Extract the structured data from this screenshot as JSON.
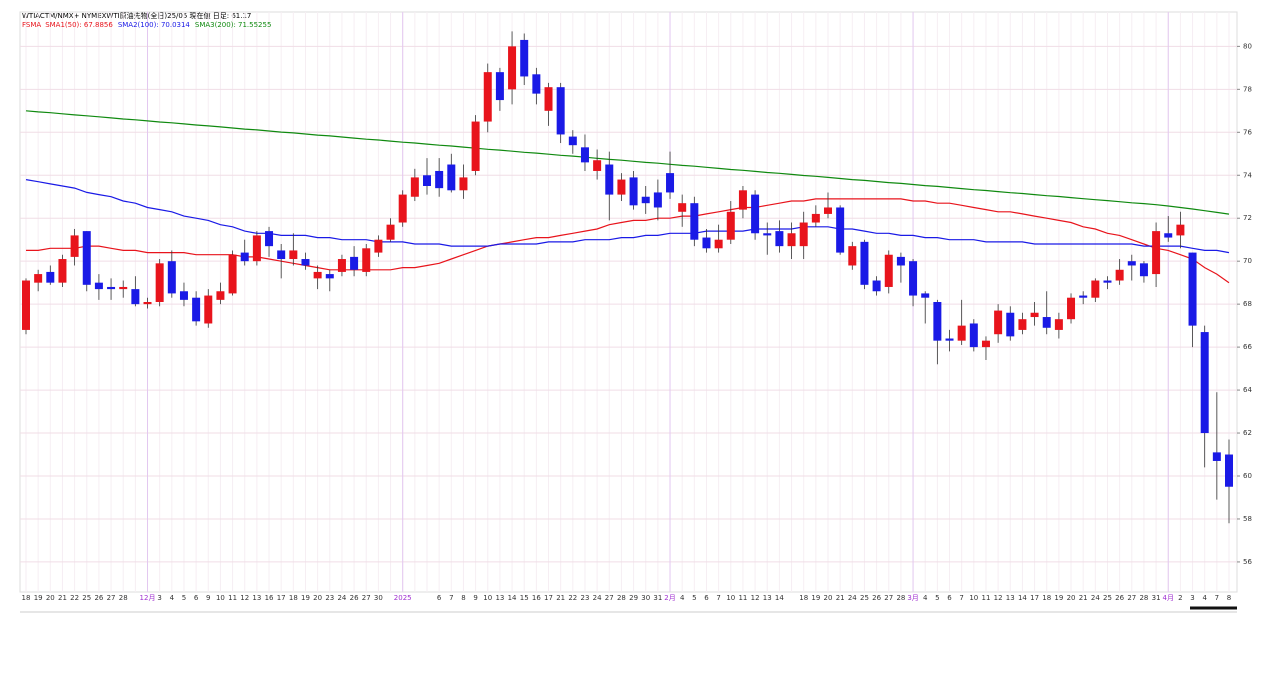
{
  "chart_data": {
    "type": "candlestick",
    "title": "WTIACTM/NMX+ NYMEXWTI原油先物(全日)25/05 現在値 日足: 61.17",
    "legend_prefix": "FSMA",
    "up_color": "#e8141c",
    "down_color": "#1a1ae6",
    "grid": true,
    "categories": [
      "18",
      "19",
      "20",
      "21",
      "22",
      "25",
      "26",
      "27",
      "28",
      null,
      "12月",
      "3",
      "4",
      "5",
      "6",
      "9",
      "10",
      "11",
      "12",
      "13",
      "16",
      "17",
      "18",
      "19",
      "20",
      "23",
      "24",
      "26",
      "27",
      "30",
      null,
      "2025",
      null,
      null,
      "6",
      "7",
      "8",
      "9",
      "10",
      "13",
      "14",
      "15",
      "16",
      "17",
      "21",
      "22",
      "23",
      "24",
      "27",
      "28",
      "29",
      "30",
      "31",
      "2月",
      "4",
      "5",
      "6",
      "7",
      "10",
      "11",
      "12",
      "13",
      "14",
      null,
      "18",
      "19",
      "20",
      "21",
      "24",
      "25",
      "26",
      "27",
      "28",
      "3月",
      "4",
      "5",
      "6",
      "7",
      "10",
      "11",
      "12",
      "13",
      "14",
      "17",
      "18",
      "19",
      "20",
      "21",
      "24",
      "25",
      "26",
      "27",
      "28",
      "31",
      "4月",
      "2",
      "3",
      "4",
      "7",
      "8"
    ],
    "open": [
      66.8,
      69.0,
      69.5,
      69.0,
      70.2,
      71.4,
      69.0,
      68.8,
      68.7,
      68.7,
      68.0,
      68.1,
      70.0,
      68.6,
      68.3,
      67.1,
      68.2,
      68.5,
      70.4,
      70.0,
      71.4,
      70.5,
      70.1,
      70.1,
      69.2,
      69.4,
      69.5,
      70.2,
      69.5,
      70.4,
      71.0,
      71.8,
      73.0,
      74.0,
      74.2,
      74.5,
      73.3,
      74.2,
      76.5,
      78.8,
      78.0,
      80.3,
      78.7,
      77.0,
      78.1,
      75.8,
      75.3,
      74.2,
      74.5,
      73.1,
      73.9,
      73.0,
      73.2,
      74.1,
      72.3,
      72.7,
      71.1,
      70.6,
      71.0,
      72.4,
      73.1,
      71.3,
      71.4,
      70.7,
      70.7,
      71.8,
      72.2,
      72.5,
      69.8,
      70.9,
      69.1,
      68.8,
      70.2,
      70.0,
      68.5,
      68.1,
      66.4,
      66.3,
      67.1,
      66.0,
      66.6,
      67.6,
      66.8,
      67.4,
      67.4,
      66.8,
      67.3,
      68.4,
      68.3,
      69.1,
      69.1,
      70.0,
      69.9,
      69.4,
      71.3,
      71.2,
      70.4,
      66.7,
      61.1,
      61.0
    ],
    "high": [
      69.2,
      69.6,
      69.8,
      70.3,
      71.5,
      71.4,
      69.4,
      69.2,
      69.1,
      69.3,
      68.3,
      70.1,
      70.5,
      69.0,
      68.6,
      68.7,
      69.0,
      70.5,
      71.0,
      71.4,
      71.6,
      70.8,
      71.3,
      70.4,
      69.8,
      69.6,
      70.3,
      70.7,
      70.8,
      71.2,
      72.0,
      73.3,
      74.3,
      74.8,
      74.8,
      75.0,
      74.5,
      76.8,
      79.2,
      79.0,
      80.7,
      80.6,
      79.0,
      78.3,
      78.3,
      76.1,
      75.9,
      75.2,
      75.1,
      74.1,
      74.2,
      73.5,
      73.8,
      75.1,
      73.1,
      73.0,
      71.5,
      71.7,
      72.8,
      73.5,
      73.3,
      71.8,
      71.9,
      71.8,
      72.3,
      72.6,
      73.2,
      72.6,
      70.9,
      71.0,
      69.3,
      70.5,
      70.4,
      70.1,
      68.6,
      68.2,
      66.8,
      68.2,
      67.3,
      66.5,
      68.0,
      67.9,
      67.6,
      68.1,
      68.6,
      67.6,
      68.5,
      68.6,
      69.2,
      69.3,
      70.1,
      70.3,
      70.0,
      71.8,
      72.1,
      72.3,
      70.4,
      67.0,
      63.9,
      61.7
    ],
    "low": [
      66.6,
      68.6,
      68.9,
      68.8,
      69.8,
      68.6,
      68.2,
      68.2,
      68.3,
      67.9,
      67.8,
      67.9,
      68.3,
      67.9,
      67.0,
      66.9,
      68.0,
      68.4,
      69.8,
      69.8,
      70.2,
      69.2,
      69.8,
      69.6,
      68.7,
      68.6,
      69.3,
      69.3,
      69.3,
      70.2,
      70.9,
      71.6,
      72.8,
      73.1,
      73.0,
      73.2,
      72.9,
      74.0,
      76.0,
      77.0,
      77.3,
      78.2,
      77.3,
      76.3,
      75.5,
      75.0,
      74.2,
      73.8,
      71.9,
      72.8,
      72.4,
      72.2,
      71.9,
      72.9,
      71.6,
      70.7,
      70.4,
      70.4,
      70.8,
      72.0,
      71.0,
      70.3,
      70.4,
      70.1,
      70.1,
      71.6,
      72.0,
      70.3,
      69.6,
      68.7,
      68.4,
      68.5,
      69.0,
      67.9,
      67.1,
      65.2,
      65.8,
      66.1,
      65.8,
      65.4,
      66.2,
      66.3,
      66.6,
      67.0,
      66.6,
      66.4,
      67.1,
      68.0,
      68.1,
      68.7,
      68.9,
      69.1,
      69.0,
      68.8,
      70.9,
      70.6,
      66.0,
      60.4,
      58.9,
      57.8
    ],
    "close": [
      69.1,
      69.4,
      69.0,
      70.1,
      71.2,
      68.9,
      68.7,
      68.7,
      68.8,
      68.0,
      68.1,
      69.9,
      68.5,
      68.2,
      67.2,
      68.4,
      68.6,
      70.3,
      70.0,
      71.2,
      70.7,
      70.1,
      70.5,
      69.8,
      69.5,
      69.2,
      70.1,
      69.6,
      70.6,
      71.0,
      71.7,
      73.1,
      73.9,
      73.5,
      73.4,
      73.3,
      73.9,
      76.5,
      78.8,
      77.5,
      80.0,
      78.6,
      77.8,
      78.1,
      75.9,
      75.4,
      74.6,
      74.7,
      73.1,
      73.8,
      72.6,
      72.7,
      72.5,
      73.2,
      72.7,
      71.0,
      70.6,
      71.0,
      72.3,
      73.3,
      71.3,
      71.2,
      70.7,
      71.3,
      71.8,
      72.2,
      72.5,
      70.4,
      70.7,
      68.9,
      68.6,
      70.3,
      69.8,
      68.4,
      68.3,
      66.3,
      66.3,
      67.0,
      66.0,
      66.3,
      67.7,
      66.5,
      67.3,
      67.6,
      66.9,
      67.3,
      68.3,
      68.3,
      69.1,
      69.0,
      69.6,
      69.8,
      69.3,
      71.4,
      71.1,
      71.7,
      67.0,
      62.0,
      60.7,
      59.5
    ],
    "series": [
      {
        "name": "SMA1(50): 67.8856",
        "color": "#e8141c",
        "values": [
          70.5,
          70.5,
          70.6,
          70.6,
          70.6,
          70.7,
          70.7,
          70.6,
          70.5,
          70.5,
          70.4,
          70.4,
          70.4,
          70.4,
          70.3,
          70.3,
          70.3,
          70.3,
          70.2,
          70.2,
          70.1,
          70.0,
          69.9,
          69.8,
          69.7,
          69.6,
          69.6,
          69.6,
          69.6,
          69.6,
          69.6,
          69.7,
          69.7,
          69.8,
          69.9,
          70.1,
          70.3,
          70.5,
          70.7,
          70.8,
          70.9,
          71.0,
          71.1,
          71.1,
          71.2,
          71.3,
          71.4,
          71.5,
          71.7,
          71.8,
          71.9,
          71.9,
          72.0,
          72.0,
          72.1,
          72.1,
          72.2,
          72.3,
          72.4,
          72.5,
          72.5,
          72.6,
          72.7,
          72.8,
          72.8,
          72.9,
          72.9,
          72.9,
          72.9,
          72.9,
          72.9,
          72.9,
          72.9,
          72.8,
          72.8,
          72.7,
          72.7,
          72.6,
          72.5,
          72.4,
          72.3,
          72.3,
          72.2,
          72.1,
          72.0,
          71.9,
          71.8,
          71.6,
          71.5,
          71.3,
          71.2,
          71.0,
          70.8,
          70.6,
          70.5,
          70.3,
          70.1,
          69.7,
          69.4,
          69.0
        ]
      },
      {
        "name": "SMA2(100): 70.0314",
        "color": "#1a1ae6",
        "values": [
          73.8,
          73.7,
          73.6,
          73.5,
          73.4,
          73.2,
          73.1,
          73.0,
          72.8,
          72.7,
          72.5,
          72.4,
          72.3,
          72.1,
          72.0,
          71.9,
          71.7,
          71.6,
          71.4,
          71.3,
          71.3,
          71.2,
          71.2,
          71.2,
          71.1,
          71.1,
          71.0,
          71.0,
          71.0,
          70.9,
          70.9,
          70.9,
          70.8,
          70.8,
          70.8,
          70.7,
          70.7,
          70.7,
          70.7,
          70.8,
          70.8,
          70.8,
          70.8,
          70.9,
          70.9,
          70.9,
          71.0,
          71.0,
          71.0,
          71.1,
          71.1,
          71.2,
          71.2,
          71.3,
          71.3,
          71.3,
          71.4,
          71.4,
          71.4,
          71.4,
          71.5,
          71.5,
          71.5,
          71.5,
          71.6,
          71.6,
          71.6,
          71.5,
          71.5,
          71.4,
          71.3,
          71.3,
          71.2,
          71.2,
          71.1,
          71.1,
          71.0,
          71.0,
          71.0,
          70.9,
          70.9,
          70.9,
          70.9,
          70.8,
          70.8,
          70.8,
          70.8,
          70.8,
          70.8,
          70.8,
          70.8,
          70.8,
          70.7,
          70.7,
          70.7,
          70.7,
          70.6,
          70.5,
          70.5,
          70.4
        ]
      },
      {
        "name": "SMA3(200): 71.55255",
        "color": "#108a10",
        "values": [
          77.0,
          76.95,
          76.91,
          76.86,
          76.81,
          76.77,
          76.72,
          76.67,
          76.62,
          76.58,
          76.53,
          76.48,
          76.44,
          76.39,
          76.34,
          76.3,
          76.25,
          76.2,
          76.15,
          76.11,
          76.06,
          76.01,
          75.97,
          75.92,
          75.87,
          75.83,
          75.78,
          75.73,
          75.68,
          75.64,
          75.59,
          75.54,
          75.5,
          75.45,
          75.4,
          75.36,
          75.31,
          75.26,
          75.21,
          75.17,
          75.12,
          75.07,
          75.03,
          74.98,
          74.93,
          74.89,
          74.84,
          74.79,
          74.74,
          74.7,
          74.65,
          74.6,
          74.56,
          74.51,
          74.46,
          74.42,
          74.37,
          74.32,
          74.27,
          74.23,
          74.18,
          74.13,
          74.09,
          74.04,
          73.99,
          73.95,
          73.9,
          73.85,
          73.8,
          73.76,
          73.71,
          73.66,
          73.62,
          73.57,
          73.52,
          73.48,
          73.43,
          73.38,
          73.33,
          73.29,
          73.24,
          73.19,
          73.15,
          73.1,
          73.05,
          73.01,
          72.96,
          72.91,
          72.86,
          72.82,
          72.77,
          72.72,
          72.68,
          72.63,
          72.57,
          72.5,
          72.43,
          72.35,
          72.27,
          72.19
        ]
      }
    ],
    "ylim": [
      54.6,
      81.6
    ],
    "yticks": [
      56,
      58,
      60,
      62,
      64,
      66,
      68,
      70,
      72,
      74,
      76,
      78,
      80
    ]
  }
}
